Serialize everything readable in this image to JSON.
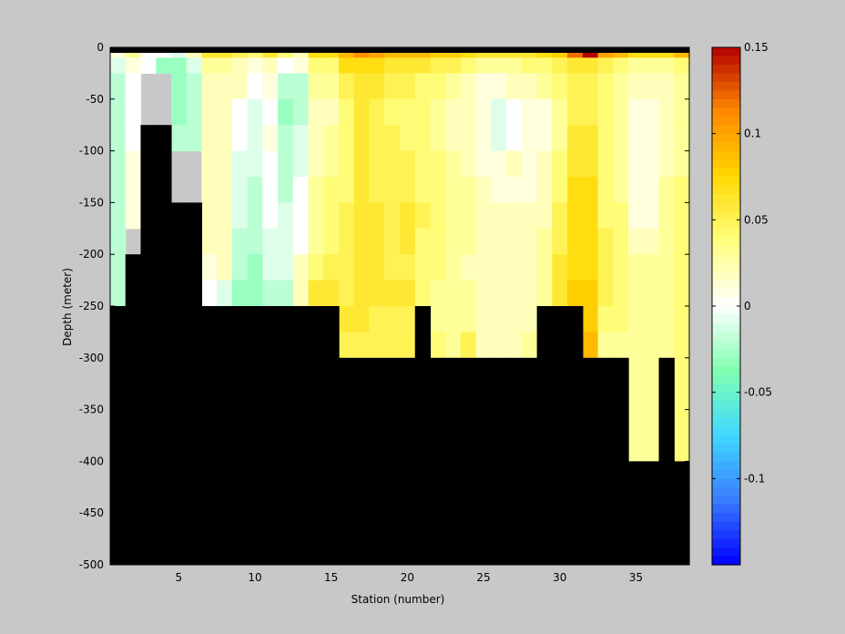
{
  "chart_data": {
    "type": "heatmap",
    "title": "",
    "xlabel": "Station (number)",
    "ylabel": "Depth (meter)",
    "xlim": [
      1,
      38
    ],
    "ylim": [
      -500,
      0
    ],
    "x_ticks": [
      5,
      10,
      15,
      20,
      25,
      30,
      35
    ],
    "y_ticks": [
      0,
      -50,
      -100,
      -150,
      -200,
      -250,
      -300,
      -350,
      -400,
      -450,
      -500
    ],
    "colorbar": {
      "limits": [
        -0.15,
        0.15
      ],
      "ticks": [
        0.15,
        0.1,
        0.05,
        0,
        -0.05,
        -0.1
      ],
      "colormap": [
        "#0000ff",
        "#3a7cff",
        "#40d8ff",
        "#80ffb0",
        "#ffffff",
        "#ffff80",
        "#ffd800",
        "#ff8a00",
        "#b40000"
      ]
    },
    "mask_color": "#000000",
    "depth_levels": [
      0,
      -10,
      -25,
      -50,
      -75,
      -100,
      -125,
      -150,
      -175,
      -200,
      -225,
      -250,
      -275,
      -300,
      -325,
      -350,
      -375,
      -400,
      -425,
      -450,
      -475,
      -500
    ],
    "stations": [
      1,
      2,
      3,
      4,
      5,
      6,
      7,
      8,
      9,
      10,
      11,
      12,
      13,
      14,
      15,
      16,
      17,
      18,
      19,
      20,
      21,
      22,
      23,
      24,
      25,
      26,
      27,
      28,
      29,
      30,
      31,
      32,
      33,
      34,
      35,
      36,
      37,
      38
    ],
    "bottom_depth": [
      -250,
      -200,
      -75,
      -75,
      -150,
      -150,
      -250,
      -250,
      -250,
      -250,
      -250,
      -250,
      -250,
      -250,
      -250,
      -300,
      -300,
      -300,
      -300,
      -300,
      -250,
      -300,
      -300,
      -300,
      -300,
      -300,
      -300,
      -300,
      -250,
      -250,
      -250,
      -300,
      -300,
      -300,
      -400,
      -400,
      -300,
      -400
    ],
    "profiles": [
      [
        0.01,
        -0.01,
        -0.02,
        -0.02,
        -0.02,
        -0.02,
        -0.02,
        -0.02,
        -0.02,
        -0.02,
        -0.02
      ],
      [
        0.03,
        0.01,
        0.0,
        0.0,
        0.0,
        0.01,
        0.01,
        0.01
      ],
      [
        0.0,
        0.0
      ],
      [
        0.0,
        -0.03
      ],
      [
        -0.01,
        -0.03,
        -0.03,
        -0.03,
        -0.02
      ],
      [
        0.02,
        -0.01,
        -0.02,
        -0.02,
        -0.02
      ],
      [
        0.06,
        0.03,
        0.02,
        0.02,
        0.02,
        0.02,
        0.02,
        0.02,
        0.02,
        0.01,
        0.0,
        0.0
      ],
      [
        0.06,
        0.03,
        0.02,
        0.02,
        0.02,
        0.02,
        0.02,
        0.02,
        0.02,
        0.02,
        -0.01,
        -0.02
      ],
      [
        0.05,
        0.02,
        0.02,
        0.0,
        0.0,
        -0.01,
        -0.01,
        -0.01,
        -0.02,
        -0.02,
        -0.03,
        -0.03
      ],
      [
        0.04,
        0.01,
        0.0,
        -0.01,
        -0.01,
        -0.01,
        -0.02,
        -0.02,
        -0.02,
        -0.03,
        -0.03,
        -0.03
      ],
      [
        0.06,
        0.02,
        0.01,
        0.0,
        0.01,
        0.0,
        0.0,
        0.0,
        -0.01,
        -0.01,
        -0.02,
        -0.02
      ],
      [
        0.04,
        0.0,
        -0.02,
        -0.03,
        -0.02,
        -0.02,
        -0.02,
        -0.01,
        -0.01,
        -0.01,
        -0.02,
        -0.02
      ],
      [
        0.02,
        0.01,
        -0.02,
        -0.02,
        -0.01,
        -0.01,
        0.0,
        0.0,
        0.0,
        0.02,
        0.02,
        0.02
      ],
      [
        0.07,
        0.04,
        0.03,
        0.02,
        0.02,
        0.02,
        0.03,
        0.03,
        0.03,
        0.04,
        0.06,
        0.07
      ],
      [
        0.07,
        0.04,
        0.03,
        0.02,
        0.03,
        0.03,
        0.04,
        0.04,
        0.04,
        0.05,
        0.06,
        0.07
      ],
      [
        0.09,
        0.07,
        0.05,
        0.04,
        0.04,
        0.04,
        0.04,
        0.05,
        0.05,
        0.05,
        0.05,
        0.06,
        0.05,
        0.04
      ],
      [
        0.11,
        0.07,
        0.06,
        0.06,
        0.06,
        0.06,
        0.06,
        0.06,
        0.06,
        0.06,
        0.06,
        0.06,
        0.05,
        0.05
      ],
      [
        0.1,
        0.07,
        0.06,
        0.05,
        0.05,
        0.05,
        0.05,
        0.06,
        0.06,
        0.06,
        0.06,
        0.05,
        0.05,
        0.04
      ],
      [
        0.09,
        0.06,
        0.05,
        0.04,
        0.05,
        0.05,
        0.05,
        0.05,
        0.05,
        0.05,
        0.06,
        0.05,
        0.05,
        0.04
      ],
      [
        0.09,
        0.06,
        0.05,
        0.04,
        0.04,
        0.05,
        0.05,
        0.06,
        0.06,
        0.05,
        0.06,
        0.05,
        0.05,
        0.04
      ],
      [
        0.09,
        0.06,
        0.04,
        0.04,
        0.04,
        0.04,
        0.04,
        0.05,
        0.04,
        0.04,
        0.04,
        0.04
      ],
      [
        0.08,
        0.05,
        0.04,
        0.03,
        0.03,
        0.04,
        0.04,
        0.04,
        0.04,
        0.04,
        0.03,
        0.03,
        0.04,
        0.05
      ],
      [
        0.08,
        0.05,
        0.03,
        0.02,
        0.02,
        0.03,
        0.03,
        0.03,
        0.03,
        0.03,
        0.03,
        0.03,
        0.03,
        0.04
      ],
      [
        0.07,
        0.04,
        0.02,
        0.02,
        0.02,
        0.02,
        0.03,
        0.03,
        0.03,
        0.02,
        0.03,
        0.03,
        0.05,
        0.06
      ],
      [
        0.06,
        0.03,
        0.01,
        0.01,
        0.01,
        0.01,
        0.02,
        0.02,
        0.02,
        0.02,
        0.02,
        0.02,
        0.02,
        0.02
      ],
      [
        0.06,
        0.03,
        0.01,
        -0.01,
        -0.01,
        0.01,
        0.01,
        0.02,
        0.02,
        0.02,
        0.02,
        0.02,
        0.02,
        0.02
      ],
      [
        0.06,
        0.03,
        0.02,
        0.0,
        0.0,
        0.02,
        0.01,
        0.02,
        0.02,
        0.02,
        0.02,
        0.02,
        0.02,
        0.02
      ],
      [
        0.06,
        0.04,
        0.02,
        0.01,
        0.01,
        0.01,
        0.01,
        0.02,
        0.02,
        0.02,
        0.02,
        0.02,
        0.03,
        0.02
      ],
      [
        0.07,
        0.04,
        0.03,
        0.01,
        0.01,
        0.02,
        0.02,
        0.02,
        0.03,
        0.03,
        0.03,
        0.03
      ],
      [
        0.08,
        0.05,
        0.04,
        0.03,
        0.03,
        0.04,
        0.04,
        0.05,
        0.05,
        0.06,
        0.06,
        0.06
      ],
      [
        0.12,
        0.06,
        0.05,
        0.05,
        0.06,
        0.06,
        0.07,
        0.07,
        0.07,
        0.07,
        0.08,
        0.08
      ],
      [
        0.15,
        0.06,
        0.05,
        0.05,
        0.06,
        0.06,
        0.07,
        0.07,
        0.07,
        0.07,
        0.08,
        0.08,
        0.09,
        0.09
      ],
      [
        0.1,
        0.05,
        0.04,
        0.04,
        0.04,
        0.04,
        0.04,
        0.04,
        0.05,
        0.05,
        0.05,
        0.04,
        0.03,
        0.03
      ],
      [
        0.09,
        0.04,
        0.03,
        0.03,
        0.03,
        0.03,
        0.03,
        0.04,
        0.04,
        0.04,
        0.04,
        0.04,
        0.03,
        0.03
      ],
      [
        0.07,
        0.03,
        0.02,
        0.01,
        0.01,
        0.01,
        0.01,
        0.01,
        0.02,
        0.03,
        0.03,
        0.03,
        0.03,
        0.03,
        0.03,
        0.03,
        0.03,
        0.03
      ],
      [
        0.07,
        0.03,
        0.02,
        0.01,
        0.01,
        0.01,
        0.01,
        0.01,
        0.02,
        0.03,
        0.03,
        0.03,
        0.03,
        0.03,
        0.03,
        0.03,
        0.03,
        0.03
      ],
      [
        0.07,
        0.03,
        0.02,
        0.02,
        0.02,
        0.02,
        0.03,
        0.03,
        0.03,
        0.03,
        0.03,
        0.03,
        0.03,
        0.03
      ],
      [
        0.09,
        0.04,
        0.03,
        0.03,
        0.03,
        0.03,
        0.04,
        0.04,
        0.04,
        0.04,
        0.04,
        0.04,
        0.04,
        0.04,
        0.04,
        0.04,
        0.04,
        0.04
      ]
    ]
  }
}
